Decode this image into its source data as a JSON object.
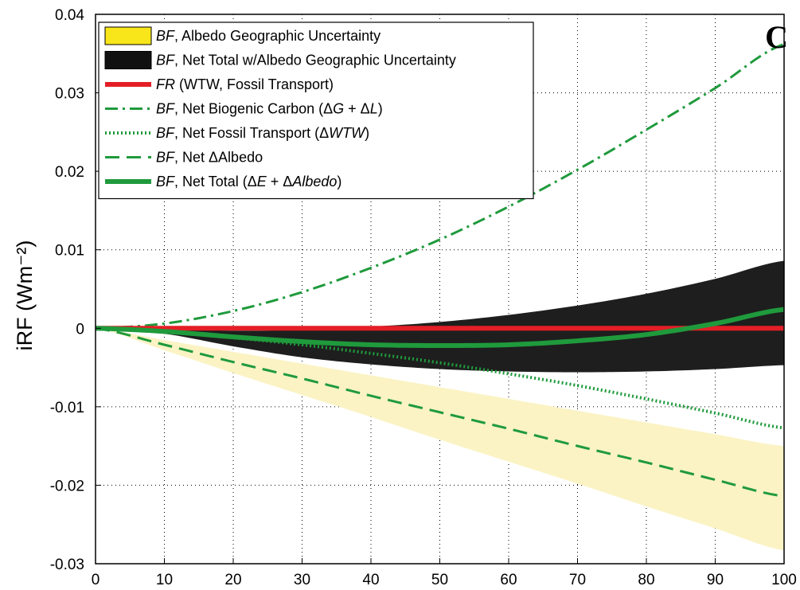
{
  "chart_data": {
    "type": "line",
    "corner_label": "C",
    "ylabel": "iRF (Wm⁻²)",
    "xlabel": "",
    "xlim": [
      0,
      100
    ],
    "ylim": [
      -0.03,
      0.04
    ],
    "x_ticks": [
      0,
      10,
      20,
      30,
      40,
      50,
      60,
      70,
      80,
      90,
      100
    ],
    "x_tick_labels": [
      "0",
      "10",
      "20",
      "30",
      "40",
      "50",
      "60",
      "70",
      "80",
      "90",
      "100"
    ],
    "y_ticks": [
      -0.03,
      -0.02,
      -0.01,
      0,
      0.01,
      0.02,
      0.03,
      0.04
    ],
    "y_tick_labels": [
      "-0.03",
      "-0.02",
      "-0.01",
      "0",
      "0.01",
      "0.02",
      "0.03",
      "0.04"
    ],
    "grid": true,
    "legend_position": "top-left",
    "x": [
      0,
      10,
      20,
      30,
      40,
      50,
      60,
      70,
      80,
      90,
      100
    ],
    "bands": [
      {
        "legend": [
          "BF",
          ", Albedo Geographic Uncertainty"
        ],
        "color": "#fbf3c4",
        "legend_color": "#f8e61a",
        "lower": [
          0,
          -0.0028,
          -0.0057,
          -0.0085,
          -0.0113,
          -0.0142,
          -0.017,
          -0.0198,
          -0.0227,
          -0.0255,
          -0.0283
        ],
        "upper": [
          0,
          -0.0015,
          -0.003,
          -0.0045,
          -0.006,
          -0.0075,
          -0.009,
          -0.0105,
          -0.012,
          -0.0135,
          -0.015
        ]
      },
      {
        "legend": [
          "BF",
          ", Net Total w/Albedo Geographic Uncertainty"
        ],
        "color": "#1e1e1e",
        "legend_color": "#111111",
        "lower": [
          0,
          -0.0007,
          -0.0023,
          -0.0037,
          -0.0046,
          -0.0052,
          -0.0055,
          -0.0056,
          -0.0055,
          -0.0052,
          -0.0047
        ],
        "upper": [
          0,
          -0.0001,
          -0.0003,
          -0.0002,
          0.0002,
          0.0008,
          0.0017,
          0.0029,
          0.0044,
          0.0063,
          0.0086
        ]
      }
    ],
    "series": [
      {
        "legend": [
          "FR",
          " (WTW, Fossil Transport)"
        ],
        "color": "#e41e26",
        "style": "solid",
        "width": 6,
        "values": [
          0,
          0,
          0,
          0,
          0,
          0,
          0,
          0,
          0,
          0,
          0
        ]
      },
      {
        "legend": [
          "BF",
          ", Net Biogenic Carbon (Δ",
          "G",
          " + Δ",
          "L",
          ")"
        ],
        "color": "#1f9a3c",
        "style": "dashdot",
        "width": 3,
        "values": [
          0,
          0.0006,
          0.0022,
          0.0046,
          0.0077,
          0.0113,
          0.0155,
          0.0202,
          0.0253,
          0.0306,
          0.0362
        ]
      },
      {
        "legend": [
          "BF",
          ", Net Fossil Transport (Δ",
          "WTW",
          ")"
        ],
        "color": "#1f9a3c",
        "style": "dotted",
        "width": 4,
        "values": [
          0,
          -0.0005,
          -0.0012,
          -0.0021,
          -0.0032,
          -0.0044,
          -0.0058,
          -0.0073,
          -0.009,
          -0.0108,
          -0.0127
        ]
      },
      {
        "legend": [
          "BF",
          ", Net ΔAlbedo"
        ],
        "color": "#1f9a3c",
        "style": "dashed",
        "width": 3,
        "values": [
          0,
          -0.0021,
          -0.0043,
          -0.0064,
          -0.0086,
          -0.0107,
          -0.0128,
          -0.015,
          -0.0171,
          -0.0193,
          -0.0214
        ]
      },
      {
        "legend": [
          "BF",
          ", Net Total (Δ",
          "E",
          " + Δ",
          "Albedo",
          ")"
        ],
        "color": "#1f9a3c",
        "style": "solid",
        "width": 6,
        "values": [
          0,
          -0.0004,
          -0.0011,
          -0.0017,
          -0.0021,
          -0.0022,
          -0.0021,
          -0.0016,
          -0.0008,
          0.0006,
          0.0024
        ]
      }
    ]
  }
}
